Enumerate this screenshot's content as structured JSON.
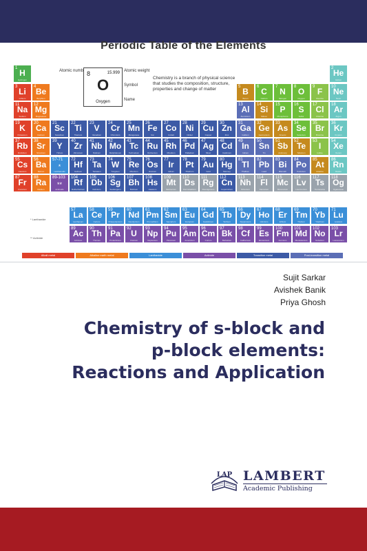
{
  "colors": {
    "band_top": "#2b2d5e",
    "band_bottom": "#a61b22",
    "title": "#2b2d5e",
    "alkali": "#e0412a",
    "alkaline_earth": "#ef7a1e",
    "transition": "#3c5aa6",
    "post_transition": "#5b6eb6",
    "metalloid": "#c58a1e",
    "nonmetal": "#6dbf3a",
    "halogen": "#8bc34a",
    "noble": "#6cc7c3",
    "lanthanide": "#3b8fd8",
    "actinide": "#7a4fa8",
    "unknown": "#9aa3ac",
    "hydrogen": "#4caf50"
  },
  "periodic_table": {
    "title": "Periodic Table of the Elements",
    "legend": {
      "number": "8",
      "weight": "15.999",
      "symbol": "O",
      "name": "Oxygen",
      "label_atomic_number": "Atomic number",
      "label_atomic_weight": "Atomic weight",
      "label_symbol": "Symbol",
      "label_name": "Name"
    },
    "description": "Chemistry is a branch of physical science that studies the composition, structure, properties and change of matter",
    "series_labels": [
      "* Lanthanide",
      "** Actinide"
    ],
    "elements": [
      {
        "n": "1",
        "s": "H",
        "nm": "Hydrogen",
        "r": 1,
        "c": 1,
        "k": "hydrogen"
      },
      {
        "n": "2",
        "s": "He",
        "nm": "Helium",
        "r": 1,
        "c": 18,
        "k": "noble"
      },
      {
        "n": "3",
        "s": "Li",
        "nm": "Lithium",
        "r": 2,
        "c": 1,
        "k": "alkali"
      },
      {
        "n": "4",
        "s": "Be",
        "nm": "Beryllium",
        "r": 2,
        "c": 2,
        "k": "alkaline_earth"
      },
      {
        "n": "5",
        "s": "B",
        "nm": "Boron",
        "r": 2,
        "c": 13,
        "k": "metalloid"
      },
      {
        "n": "6",
        "s": "C",
        "nm": "Carbon",
        "r": 2,
        "c": 14,
        "k": "nonmetal"
      },
      {
        "n": "7",
        "s": "N",
        "nm": "Nitrogen",
        "r": 2,
        "c": 15,
        "k": "nonmetal"
      },
      {
        "n": "8",
        "s": "O",
        "nm": "Oxygen",
        "r": 2,
        "c": 16,
        "k": "nonmetal"
      },
      {
        "n": "9",
        "s": "F",
        "nm": "Fluorine",
        "r": 2,
        "c": 17,
        "k": "halogen"
      },
      {
        "n": "10",
        "s": "Ne",
        "nm": "Neon",
        "r": 2,
        "c": 18,
        "k": "noble"
      },
      {
        "n": "11",
        "s": "Na",
        "nm": "Sodium",
        "r": 3,
        "c": 1,
        "k": "alkali"
      },
      {
        "n": "12",
        "s": "Mg",
        "nm": "Magnesium",
        "r": 3,
        "c": 2,
        "k": "alkaline_earth"
      },
      {
        "n": "13",
        "s": "Al",
        "nm": "Aluminium",
        "r": 3,
        "c": 13,
        "k": "post_transition"
      },
      {
        "n": "14",
        "s": "Si",
        "nm": "Silicon",
        "r": 3,
        "c": 14,
        "k": "metalloid"
      },
      {
        "n": "15",
        "s": "P",
        "nm": "Phosphorus",
        "r": 3,
        "c": 15,
        "k": "nonmetal"
      },
      {
        "n": "16",
        "s": "S",
        "nm": "Sulfur",
        "r": 3,
        "c": 16,
        "k": "nonmetal"
      },
      {
        "n": "17",
        "s": "Cl",
        "nm": "Chlorine",
        "r": 3,
        "c": 17,
        "k": "halogen"
      },
      {
        "n": "18",
        "s": "Ar",
        "nm": "Argon",
        "r": 3,
        "c": 18,
        "k": "noble"
      },
      {
        "n": "19",
        "s": "K",
        "nm": "Potassium",
        "r": 4,
        "c": 1,
        "k": "alkali"
      },
      {
        "n": "20",
        "s": "Ca",
        "nm": "Calcium",
        "r": 4,
        "c": 2,
        "k": "alkaline_earth"
      },
      {
        "n": "21",
        "s": "Sc",
        "nm": "Scandium",
        "r": 4,
        "c": 3,
        "k": "transition"
      },
      {
        "n": "22",
        "s": "Ti",
        "nm": "Titanium",
        "r": 4,
        "c": 4,
        "k": "transition"
      },
      {
        "n": "23",
        "s": "V",
        "nm": "Vanadium",
        "r": 4,
        "c": 5,
        "k": "transition"
      },
      {
        "n": "24",
        "s": "Cr",
        "nm": "Chromium",
        "r": 4,
        "c": 6,
        "k": "transition"
      },
      {
        "n": "25",
        "s": "Mn",
        "nm": "Manganese",
        "r": 4,
        "c": 7,
        "k": "transition"
      },
      {
        "n": "26",
        "s": "Fe",
        "nm": "Iron",
        "r": 4,
        "c": 8,
        "k": "transition"
      },
      {
        "n": "27",
        "s": "Co",
        "nm": "Cobalt",
        "r": 4,
        "c": 9,
        "k": "transition"
      },
      {
        "n": "28",
        "s": "Ni",
        "nm": "Nickel",
        "r": 4,
        "c": 10,
        "k": "transition"
      },
      {
        "n": "29",
        "s": "Cu",
        "nm": "Copper",
        "r": 4,
        "c": 11,
        "k": "transition"
      },
      {
        "n": "30",
        "s": "Zn",
        "nm": "Zinc",
        "r": 4,
        "c": 12,
        "k": "transition"
      },
      {
        "n": "31",
        "s": "Ga",
        "nm": "Gallium",
        "r": 4,
        "c": 13,
        "k": "post_transition"
      },
      {
        "n": "32",
        "s": "Ge",
        "nm": "Germanium",
        "r": 4,
        "c": 14,
        "k": "metalloid"
      },
      {
        "n": "33",
        "s": "As",
        "nm": "Arsenic",
        "r": 4,
        "c": 15,
        "k": "metalloid"
      },
      {
        "n": "34",
        "s": "Se",
        "nm": "Selenium",
        "r": 4,
        "c": 16,
        "k": "nonmetal"
      },
      {
        "n": "35",
        "s": "Br",
        "nm": "Bromine",
        "r": 4,
        "c": 17,
        "k": "halogen"
      },
      {
        "n": "36",
        "s": "Kr",
        "nm": "Krypton",
        "r": 4,
        "c": 18,
        "k": "noble"
      },
      {
        "n": "37",
        "s": "Rb",
        "nm": "Rubidium",
        "r": 5,
        "c": 1,
        "k": "alkali"
      },
      {
        "n": "38",
        "s": "Sr",
        "nm": "Strontium",
        "r": 5,
        "c": 2,
        "k": "alkaline_earth"
      },
      {
        "n": "39",
        "s": "Y",
        "nm": "Yttrium",
        "r": 5,
        "c": 3,
        "k": "transition"
      },
      {
        "n": "40",
        "s": "Zr",
        "nm": "Zirconium",
        "r": 5,
        "c": 4,
        "k": "transition"
      },
      {
        "n": "41",
        "s": "Nb",
        "nm": "Niobium",
        "r": 5,
        "c": 5,
        "k": "transition"
      },
      {
        "n": "42",
        "s": "Mo",
        "nm": "Molybdenum",
        "r": 5,
        "c": 6,
        "k": "transition"
      },
      {
        "n": "43",
        "s": "Tc",
        "nm": "Technetium",
        "r": 5,
        "c": 7,
        "k": "transition"
      },
      {
        "n": "44",
        "s": "Ru",
        "nm": "Ruthenium",
        "r": 5,
        "c": 8,
        "k": "transition"
      },
      {
        "n": "45",
        "s": "Rh",
        "nm": "Rhodium",
        "r": 5,
        "c": 9,
        "k": "transition"
      },
      {
        "n": "46",
        "s": "Pd",
        "nm": "Palladium",
        "r": 5,
        "c": 10,
        "k": "transition"
      },
      {
        "n": "47",
        "s": "Ag",
        "nm": "Silver",
        "r": 5,
        "c": 11,
        "k": "transition"
      },
      {
        "n": "48",
        "s": "Cd",
        "nm": "Cadmium",
        "r": 5,
        "c": 12,
        "k": "transition"
      },
      {
        "n": "49",
        "s": "In",
        "nm": "Indium",
        "r": 5,
        "c": 13,
        "k": "post_transition"
      },
      {
        "n": "50",
        "s": "Sn",
        "nm": "Tin",
        "r": 5,
        "c": 14,
        "k": "post_transition"
      },
      {
        "n": "51",
        "s": "Sb",
        "nm": "Antimony",
        "r": 5,
        "c": 15,
        "k": "metalloid"
      },
      {
        "n": "52",
        "s": "Te",
        "nm": "Tellurium",
        "r": 5,
        "c": 16,
        "k": "metalloid"
      },
      {
        "n": "53",
        "s": "I",
        "nm": "Iodine",
        "r": 5,
        "c": 17,
        "k": "halogen"
      },
      {
        "n": "54",
        "s": "Xe",
        "nm": "Xenon",
        "r": 5,
        "c": 18,
        "k": "noble"
      },
      {
        "n": "55",
        "s": "Cs",
        "nm": "Caesium",
        "r": 6,
        "c": 1,
        "k": "alkali"
      },
      {
        "n": "56",
        "s": "Ba",
        "nm": "Barium",
        "r": 6,
        "c": 2,
        "k": "alkaline_earth"
      },
      {
        "n": "57-71",
        "s": "",
        "nm": "Lanthanoids",
        "r": 6,
        "c": 3,
        "k": "lanthanide",
        "blank": "*"
      },
      {
        "n": "72",
        "s": "Hf",
        "nm": "Hafnium",
        "r": 6,
        "c": 4,
        "k": "transition"
      },
      {
        "n": "73",
        "s": "Ta",
        "nm": "Tantalum",
        "r": 6,
        "c": 5,
        "k": "transition"
      },
      {
        "n": "74",
        "s": "W",
        "nm": "Tungsten",
        "r": 6,
        "c": 6,
        "k": "transition"
      },
      {
        "n": "75",
        "s": "Re",
        "nm": "Rhenium",
        "r": 6,
        "c": 7,
        "k": "transition"
      },
      {
        "n": "76",
        "s": "Os",
        "nm": "Osmium",
        "r": 6,
        "c": 8,
        "k": "transition"
      },
      {
        "n": "77",
        "s": "Ir",
        "nm": "Iridium",
        "r": 6,
        "c": 9,
        "k": "transition"
      },
      {
        "n": "78",
        "s": "Pt",
        "nm": "Platinum",
        "r": 6,
        "c": 10,
        "k": "transition"
      },
      {
        "n": "79",
        "s": "Au",
        "nm": "Gold",
        "r": 6,
        "c": 11,
        "k": "transition"
      },
      {
        "n": "80",
        "s": "Hg",
        "nm": "Mercury",
        "r": 6,
        "c": 12,
        "k": "transition"
      },
      {
        "n": "81",
        "s": "Tl",
        "nm": "Thallium",
        "r": 6,
        "c": 13,
        "k": "post_transition"
      },
      {
        "n": "82",
        "s": "Pb",
        "nm": "Lead",
        "r": 6,
        "c": 14,
        "k": "post_transition"
      },
      {
        "n": "83",
        "s": "Bi",
        "nm": "Bismuth",
        "r": 6,
        "c": 15,
        "k": "post_transition"
      },
      {
        "n": "84",
        "s": "Po",
        "nm": "Polonium",
        "r": 6,
        "c": 16,
        "k": "post_transition"
      },
      {
        "n": "85",
        "s": "At",
        "nm": "Astatine",
        "r": 6,
        "c": 17,
        "k": "metalloid"
      },
      {
        "n": "86",
        "s": "Rn",
        "nm": "Radon",
        "r": 6,
        "c": 18,
        "k": "noble"
      },
      {
        "n": "87",
        "s": "Fr",
        "nm": "Francium",
        "r": 7,
        "c": 1,
        "k": "alkali"
      },
      {
        "n": "88",
        "s": "Ra",
        "nm": "Radium",
        "r": 7,
        "c": 2,
        "k": "alkaline_earth"
      },
      {
        "n": "89-103",
        "s": "",
        "nm": "Actinoids",
        "r": 7,
        "c": 3,
        "k": "actinide",
        "blank": "**"
      },
      {
        "n": "104",
        "s": "Rf",
        "nm": "Rutherfordium",
        "r": 7,
        "c": 4,
        "k": "transition"
      },
      {
        "n": "105",
        "s": "Db",
        "nm": "Dubnium",
        "r": 7,
        "c": 5,
        "k": "transition"
      },
      {
        "n": "106",
        "s": "Sg",
        "nm": "Seaborgium",
        "r": 7,
        "c": 6,
        "k": "transition"
      },
      {
        "n": "107",
        "s": "Bh",
        "nm": "Bohrium",
        "r": 7,
        "c": 7,
        "k": "transition"
      },
      {
        "n": "108",
        "s": "Hs",
        "nm": "Hassium",
        "r": 7,
        "c": 8,
        "k": "transition"
      },
      {
        "n": "109",
        "s": "Mt",
        "nm": "Meitnerium",
        "r": 7,
        "c": 9,
        "k": "unknown"
      },
      {
        "n": "110",
        "s": "Ds",
        "nm": "Darmstadtium",
        "r": 7,
        "c": 10,
        "k": "unknown"
      },
      {
        "n": "111",
        "s": "Rg",
        "nm": "Roentgenium",
        "r": 7,
        "c": 11,
        "k": "unknown"
      },
      {
        "n": "112",
        "s": "Cn",
        "nm": "Copernicium",
        "r": 7,
        "c": 12,
        "k": "transition"
      },
      {
        "n": "113",
        "s": "Nh",
        "nm": "Nihonium",
        "r": 7,
        "c": 13,
        "k": "unknown"
      },
      {
        "n": "114",
        "s": "Fl",
        "nm": "Flerovium",
        "r": 7,
        "c": 14,
        "k": "unknown"
      },
      {
        "n": "115",
        "s": "Mc",
        "nm": "Moscovium",
        "r": 7,
        "c": 15,
        "k": "unknown"
      },
      {
        "n": "116",
        "s": "Lv",
        "nm": "Livermorium",
        "r": 7,
        "c": 16,
        "k": "unknown"
      },
      {
        "n": "117",
        "s": "Ts",
        "nm": "Tennessine",
        "r": 7,
        "c": 17,
        "k": "unknown"
      },
      {
        "n": "118",
        "s": "Og",
        "nm": "Oganesson",
        "r": 7,
        "c": 18,
        "k": "unknown"
      },
      {
        "n": "57",
        "s": "La",
        "nm": "Lanthanum",
        "r": 9,
        "c": 4,
        "k": "lanthanide"
      },
      {
        "n": "58",
        "s": "Ce",
        "nm": "Cerium",
        "r": 9,
        "c": 5,
        "k": "lanthanide"
      },
      {
        "n": "59",
        "s": "Pr",
        "nm": "Praseodymium",
        "r": 9,
        "c": 6,
        "k": "lanthanide"
      },
      {
        "n": "60",
        "s": "Nd",
        "nm": "Neodymium",
        "r": 9,
        "c": 7,
        "k": "lanthanide"
      },
      {
        "n": "61",
        "s": "Pm",
        "nm": "Promethium",
        "r": 9,
        "c": 8,
        "k": "lanthanide"
      },
      {
        "n": "62",
        "s": "Sm",
        "nm": "Samarium",
        "r": 9,
        "c": 9,
        "k": "lanthanide"
      },
      {
        "n": "63",
        "s": "Eu",
        "nm": "Europium",
        "r": 9,
        "c": 10,
        "k": "lanthanide"
      },
      {
        "n": "64",
        "s": "Gd",
        "nm": "Gadolinium",
        "r": 9,
        "c": 11,
        "k": "lanthanide"
      },
      {
        "n": "65",
        "s": "Tb",
        "nm": "Terbium",
        "r": 9,
        "c": 12,
        "k": "lanthanide"
      },
      {
        "n": "66",
        "s": "Dy",
        "nm": "Dysprosium",
        "r": 9,
        "c": 13,
        "k": "lanthanide"
      },
      {
        "n": "67",
        "s": "Ho",
        "nm": "Holmium",
        "r": 9,
        "c": 14,
        "k": "lanthanide"
      },
      {
        "n": "68",
        "s": "Er",
        "nm": "Erbium",
        "r": 9,
        "c": 15,
        "k": "lanthanide"
      },
      {
        "n": "69",
        "s": "Tm",
        "nm": "Thulium",
        "r": 9,
        "c": 16,
        "k": "lanthanide"
      },
      {
        "n": "70",
        "s": "Yb",
        "nm": "Ytterbium",
        "r": 9,
        "c": 17,
        "k": "lanthanide"
      },
      {
        "n": "71",
        "s": "Lu",
        "nm": "Lutetium",
        "r": 9,
        "c": 18,
        "k": "lanthanide"
      },
      {
        "n": "89",
        "s": "Ac",
        "nm": "Actinium",
        "r": 10,
        "c": 4,
        "k": "actinide"
      },
      {
        "n": "90",
        "s": "Th",
        "nm": "Thorium",
        "r": 10,
        "c": 5,
        "k": "actinide"
      },
      {
        "n": "91",
        "s": "Pa",
        "nm": "Protactinium",
        "r": 10,
        "c": 6,
        "k": "actinide"
      },
      {
        "n": "92",
        "s": "U",
        "nm": "Uranium",
        "r": 10,
        "c": 7,
        "k": "actinide"
      },
      {
        "n": "93",
        "s": "Np",
        "nm": "Neptunium",
        "r": 10,
        "c": 8,
        "k": "actinide"
      },
      {
        "n": "94",
        "s": "Pu",
        "nm": "Plutonium",
        "r": 10,
        "c": 9,
        "k": "actinide"
      },
      {
        "n": "95",
        "s": "Am",
        "nm": "Americium",
        "r": 10,
        "c": 10,
        "k": "actinide"
      },
      {
        "n": "96",
        "s": "Cm",
        "nm": "Curium",
        "r": 10,
        "c": 11,
        "k": "actinide"
      },
      {
        "n": "97",
        "s": "Bk",
        "nm": "Berkelium",
        "r": 10,
        "c": 12,
        "k": "actinide"
      },
      {
        "n": "98",
        "s": "Cf",
        "nm": "Californium",
        "r": 10,
        "c": 13,
        "k": "actinide"
      },
      {
        "n": "99",
        "s": "Es",
        "nm": "Einsteinium",
        "r": 10,
        "c": 14,
        "k": "actinide"
      },
      {
        "n": "100",
        "s": "Fm",
        "nm": "Fermium",
        "r": 10,
        "c": 15,
        "k": "actinide"
      },
      {
        "n": "101",
        "s": "Md",
        "nm": "Mendelevium",
        "r": 10,
        "c": 16,
        "k": "actinide"
      },
      {
        "n": "102",
        "s": "No",
        "nm": "Nobelium",
        "r": 10,
        "c": 17,
        "k": "actinide"
      },
      {
        "n": "103",
        "s": "Lr",
        "nm": "Lawrencium",
        "r": 10,
        "c": 18,
        "k": "actinide"
      }
    ],
    "categories": [
      {
        "label": "Alkali metal",
        "k": "alkali"
      },
      {
        "label": "Alkaline earth metal",
        "k": "alkaline_earth"
      },
      {
        "label": "Lanthanide",
        "k": "lanthanide"
      },
      {
        "label": "Actinide",
        "k": "actinide"
      },
      {
        "label": "Transition metal",
        "k": "transition"
      },
      {
        "label": "Post-transition metal",
        "k": "post_transition"
      }
    ]
  },
  "authors": [
    "Sujit Sarkar",
    "Avishek Banik",
    "Priya Ghosh"
  ],
  "book_title_lines": [
    "Chemistry of s-block and",
    "p-block elements:",
    "Reactions and Application"
  ],
  "publisher": {
    "emblem_text": "LAP",
    "name": "LAMBERT",
    "subtitle": "Academic Publishing"
  }
}
